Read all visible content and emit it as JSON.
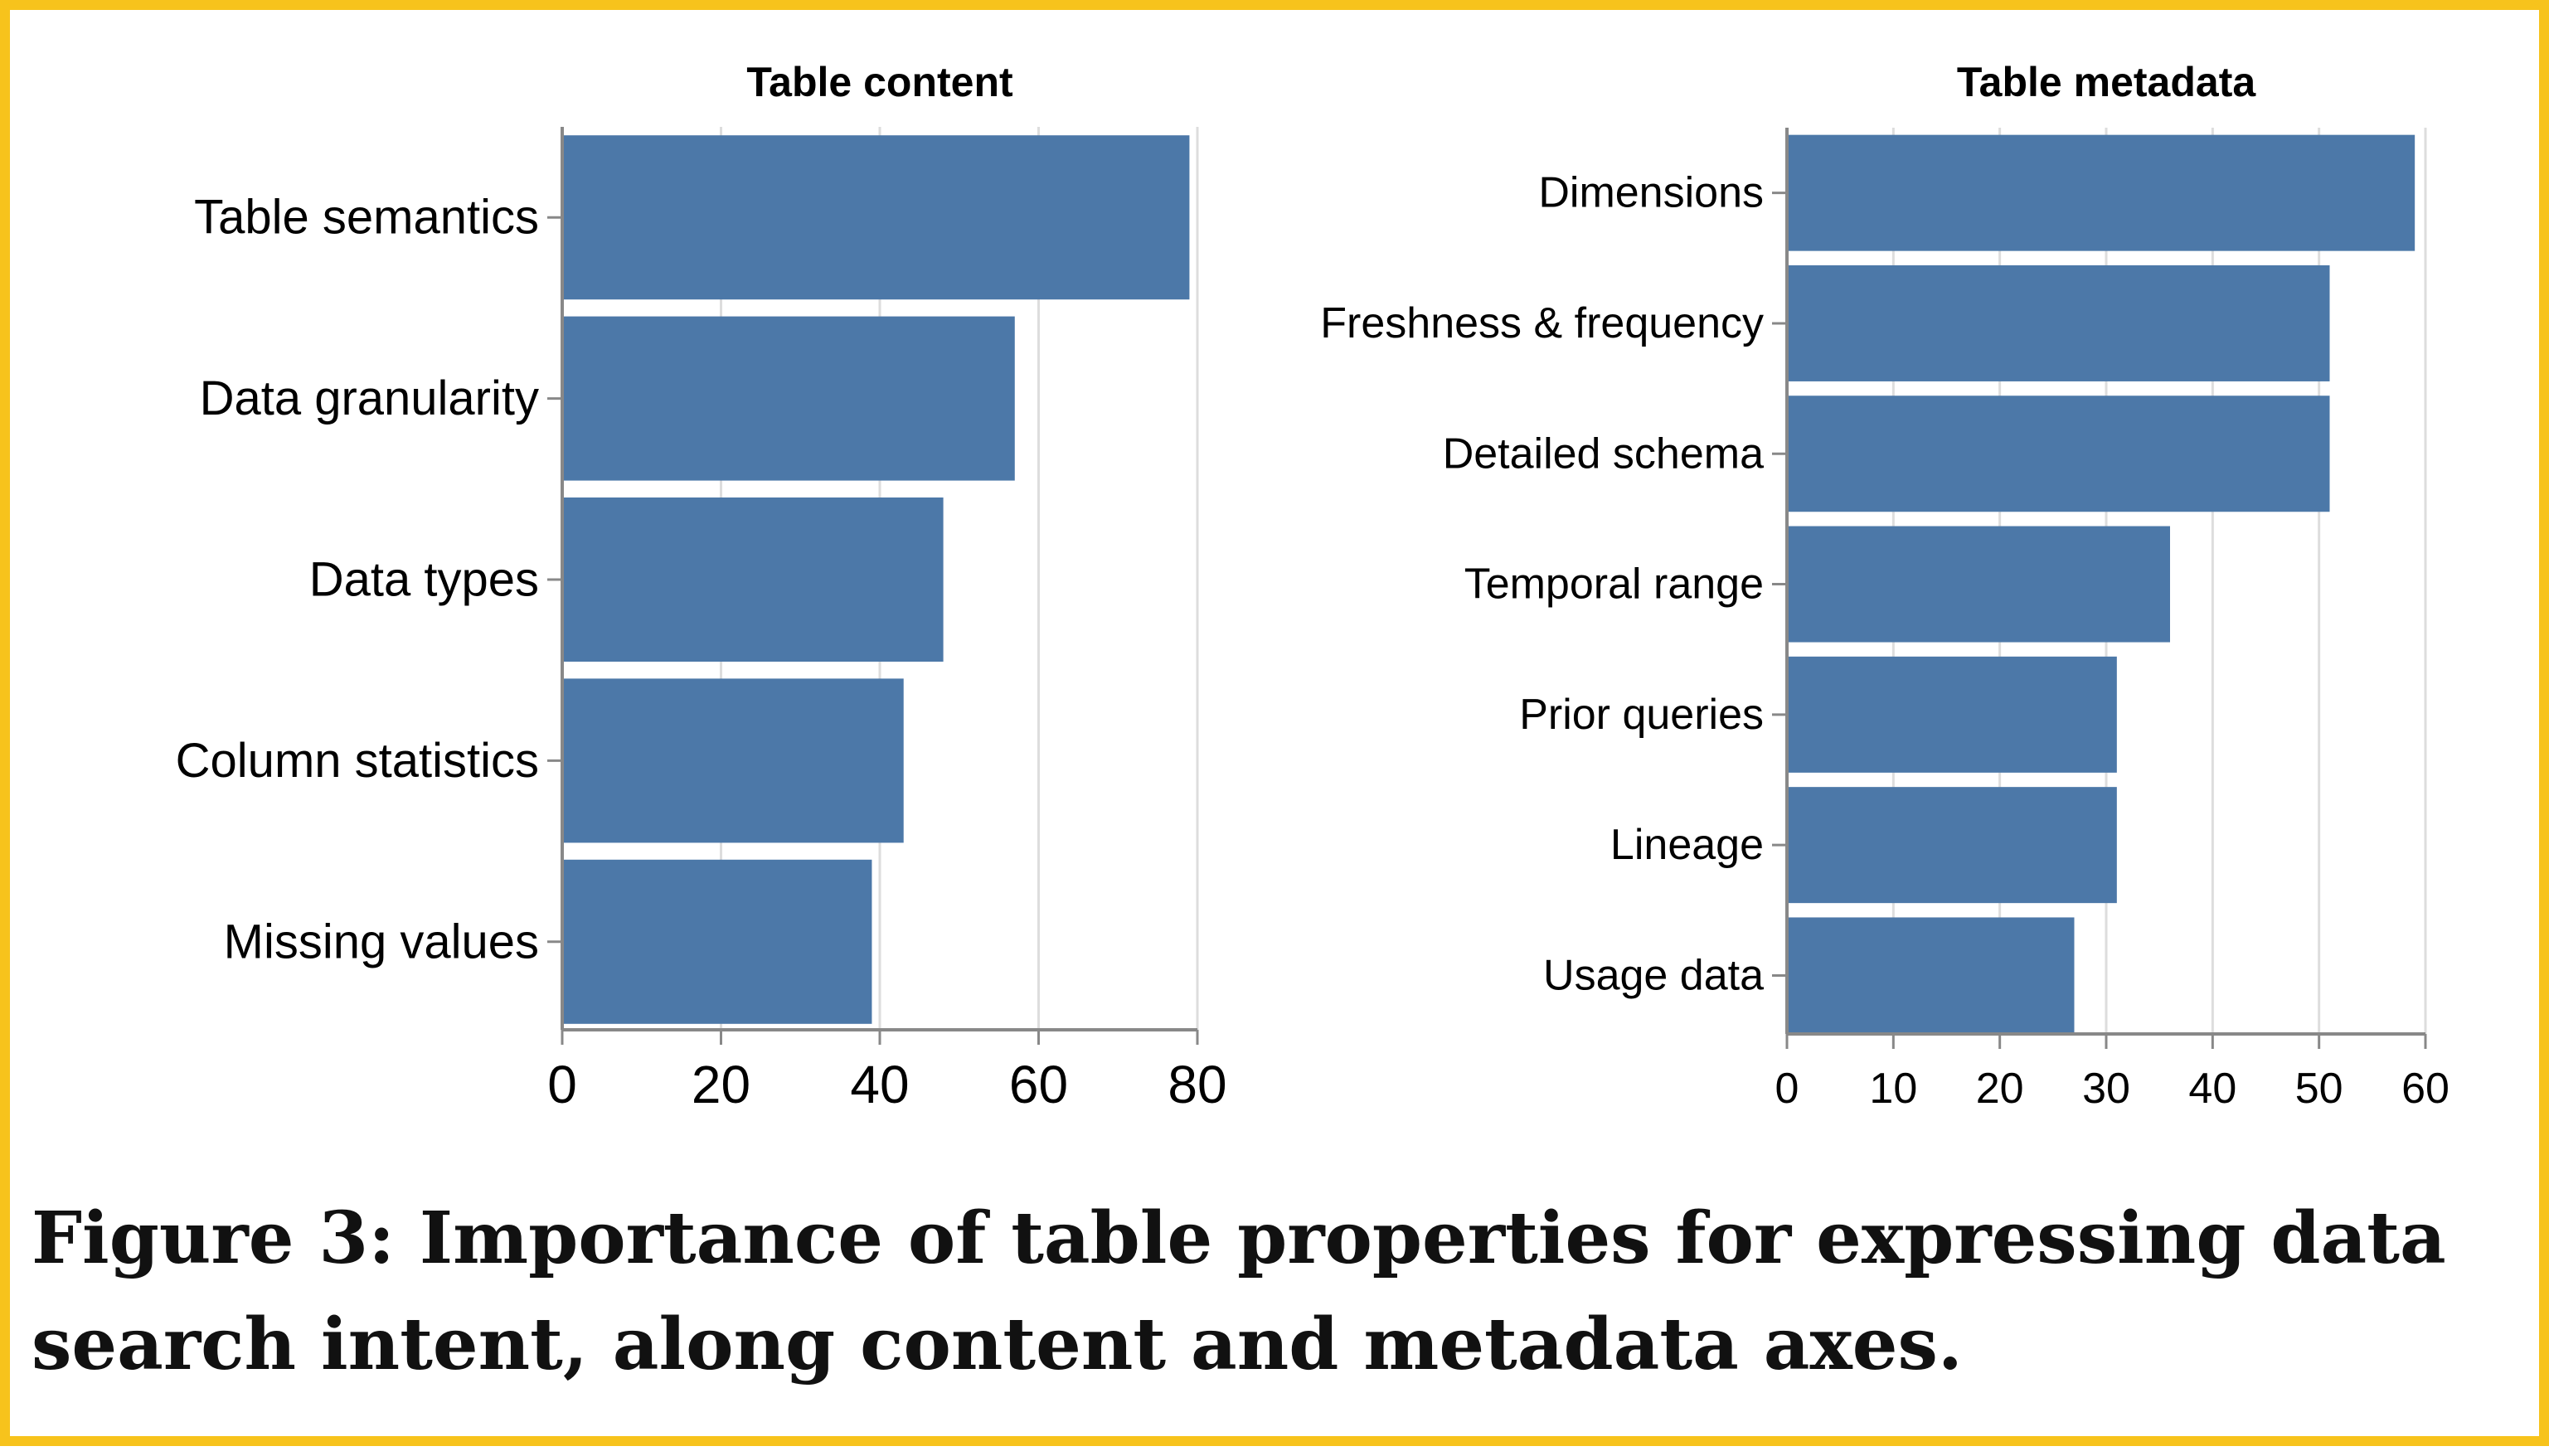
{
  "colors": {
    "bar": "#4c78a8",
    "frame": "#f7c31c",
    "grid": "#dddddd",
    "axis": "#888888"
  },
  "chart_data": [
    {
      "type": "bar",
      "orientation": "horizontal",
      "title": "Table content",
      "categories": [
        "Table semantics",
        "Data granularity",
        "Data types",
        "Column statistics",
        "Missing values"
      ],
      "values": [
        79,
        57,
        48,
        43,
        39
      ],
      "xlim": [
        0,
        80
      ],
      "xticks": [
        0,
        20,
        40,
        60,
        80
      ],
      "grid": true
    },
    {
      "type": "bar",
      "orientation": "horizontal",
      "title": "Table metadata",
      "categories": [
        "Dimensions",
        "Freshness & frequency",
        "Detailed schema",
        "Temporal range",
        "Prior queries",
        "Lineage",
        "Usage data"
      ],
      "values": [
        59,
        51,
        51,
        36,
        31,
        31,
        27
      ],
      "xlim": [
        0,
        60
      ],
      "xticks": [
        0,
        10,
        20,
        30,
        40,
        50,
        60
      ],
      "grid": true
    }
  ],
  "caption": {
    "text": "Figure 3: Importance of table properties for expressing data search intent, along content and metadata axes."
  }
}
